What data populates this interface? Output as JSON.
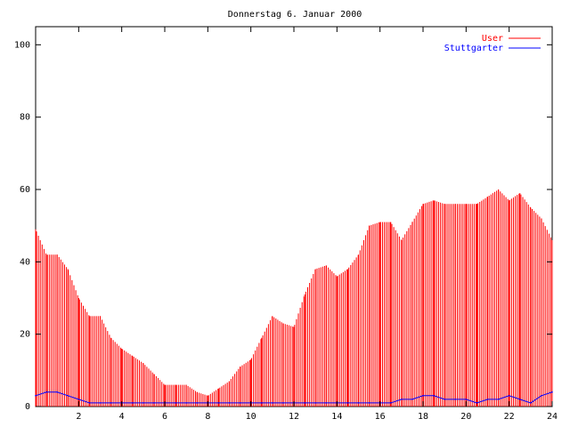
{
  "chart_data": {
    "type": "bar",
    "title": "Donnerstag 6. Januar 2000",
    "xlabel": "",
    "ylabel": "",
    "xlim": [
      0,
      24
    ],
    "ylim": [
      0,
      105
    ],
    "x_ticks": [
      2,
      4,
      6,
      8,
      10,
      12,
      14,
      16,
      18,
      20,
      22,
      24
    ],
    "y_ticks": [
      0,
      20,
      40,
      60,
      80,
      100
    ],
    "grid": false,
    "legend_position": "top-right",
    "series": [
      {
        "name": "User",
        "style": "impulses",
        "color": "#ff0000",
        "x": [
          0.0,
          0.5,
          1.0,
          1.5,
          2.0,
          2.5,
          3.0,
          3.5,
          4.0,
          4.5,
          5.0,
          5.5,
          6.0,
          6.5,
          7.0,
          7.5,
          8.0,
          8.5,
          9.0,
          9.5,
          10.0,
          10.5,
          11.0,
          11.5,
          12.0,
          12.5,
          13.0,
          13.5,
          14.0,
          14.5,
          15.0,
          15.5,
          16.0,
          16.5,
          17.0,
          17.5,
          18.0,
          18.5,
          19.0,
          19.5,
          20.0,
          20.5,
          21.0,
          21.5,
          22.0,
          22.5,
          23.0,
          23.5,
          24.0
        ],
        "values": [
          49,
          42,
          42,
          38,
          30,
          25,
          25,
          19,
          16,
          14,
          12,
          9,
          6,
          6,
          6,
          4,
          3,
          5,
          7,
          11,
          13,
          19,
          25,
          23,
          22,
          31,
          38,
          39,
          36,
          38,
          42,
          50,
          51,
          51,
          46,
          51,
          56,
          57,
          56,
          56,
          56,
          56,
          58,
          60,
          57,
          59,
          55,
          52,
          46
        ]
      },
      {
        "name": "Stuttgarter",
        "style": "line",
        "color": "#0000ff",
        "x": [
          0.0,
          0.5,
          1.0,
          1.5,
          2.0,
          2.5,
          3.0,
          3.5,
          4.0,
          4.5,
          5.0,
          5.5,
          6.0,
          6.5,
          7.0,
          7.5,
          8.0,
          8.5,
          9.0,
          9.5,
          10.0,
          10.5,
          11.0,
          11.5,
          12.0,
          12.5,
          13.0,
          13.5,
          14.0,
          14.5,
          15.0,
          15.5,
          16.0,
          16.5,
          17.0,
          17.5,
          18.0,
          18.5,
          19.0,
          19.5,
          20.0,
          20.5,
          21.0,
          21.5,
          22.0,
          22.5,
          23.0,
          23.5,
          24.0
        ],
        "values": [
          3,
          4,
          4,
          3,
          2,
          1,
          1,
          1,
          1,
          1,
          1,
          1,
          1,
          1,
          1,
          1,
          1,
          1,
          1,
          1,
          1,
          1,
          1,
          1,
          1,
          1,
          1,
          1,
          1,
          1,
          1,
          1,
          1,
          1,
          2,
          2,
          3,
          3,
          2,
          2,
          2,
          1,
          2,
          2,
          3,
          2,
          1,
          3,
          4
        ]
      }
    ]
  }
}
